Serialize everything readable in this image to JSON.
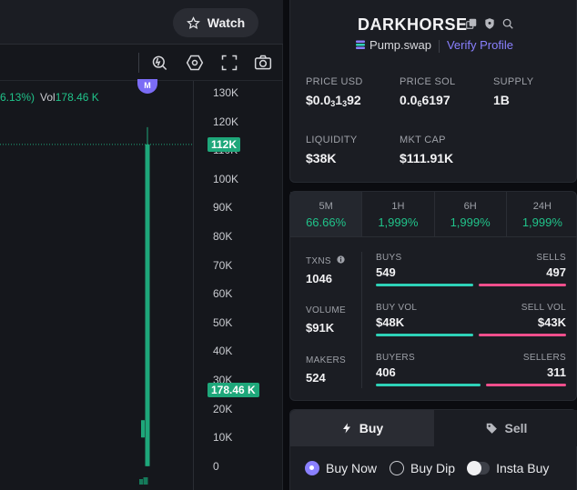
{
  "header": {
    "watch_label": "Watch"
  },
  "legend": {
    "change_pct": "6.13%)",
    "vol_label": "Vol",
    "vol_value": "178.46 K"
  },
  "marker": {
    "label": "M"
  },
  "y_axis": {
    "ticks": [
      "130K",
      "120K",
      "110K",
      "100K",
      "90K",
      "80K",
      "70K",
      "60K",
      "50K",
      "40K",
      "30K",
      "20K",
      "10K",
      "0"
    ],
    "price_label": "112K",
    "volume_label": "178.46 K"
  },
  "chart_data": {
    "type": "candlestick",
    "ylim": [
      0,
      130000
    ],
    "price_line": 112000,
    "candles": [
      {
        "open": 10000,
        "close": 16000,
        "low": 10000,
        "high": 16000
      },
      {
        "open": 0,
        "close": 112000,
        "low": 0,
        "high": 118000
      }
    ]
  },
  "token": {
    "name": "DARKHORSE",
    "dex": "Pump.swap",
    "verify": "Verify Profile",
    "icons": [
      "copy-icon",
      "shield-icon",
      "search-icon"
    ]
  },
  "stats": {
    "price_usd": {
      "label": "PRICE USD",
      "prefix": "$0.0",
      "sub": "3",
      "mid": "1",
      "sub2": "3",
      "suffix": "92"
    },
    "price_sol": {
      "label": "PRICE SOL",
      "prefix": "0.0",
      "sub": "6",
      "suffix": "6197"
    },
    "supply": {
      "label": "SUPPLY",
      "value": "1B"
    },
    "liquidity": {
      "label": "LIQUIDITY",
      "value": "$38K"
    },
    "mkt_cap": {
      "label": "MKT CAP",
      "value": "$111.91K"
    }
  },
  "timeframes": [
    {
      "label": "5M",
      "value": "66.66%"
    },
    {
      "label": "1H",
      "value": "1,999%"
    },
    {
      "label": "6H",
      "value": "1,999%"
    },
    {
      "label": "24H",
      "value": "1,999%"
    }
  ],
  "txns": {
    "txns": {
      "label": "TXNS",
      "value": "1046"
    },
    "volume": {
      "label": "VOLUME",
      "value": "$91K"
    },
    "makers": {
      "label": "MAKERS",
      "value": "524"
    },
    "buys": {
      "label": "BUYS",
      "value": "549",
      "sell_label": "SELLS",
      "sell_value": "497",
      "buy_fraction": 0.525
    },
    "vol": {
      "label": "BUY VOL",
      "value": "$48K",
      "sell_label": "SELL VOL",
      "sell_value": "$43K",
      "buy_fraction": 0.527
    },
    "buyers": {
      "label": "BUYERS",
      "value": "406",
      "sell_label": "SELLERS",
      "sell_value": "311",
      "buy_fraction": 0.566
    }
  },
  "trade": {
    "buy_label": "Buy",
    "sell_label": "Sell",
    "order_types": [
      "Buy Now",
      "Buy Dip",
      "Insta Buy"
    ]
  }
}
